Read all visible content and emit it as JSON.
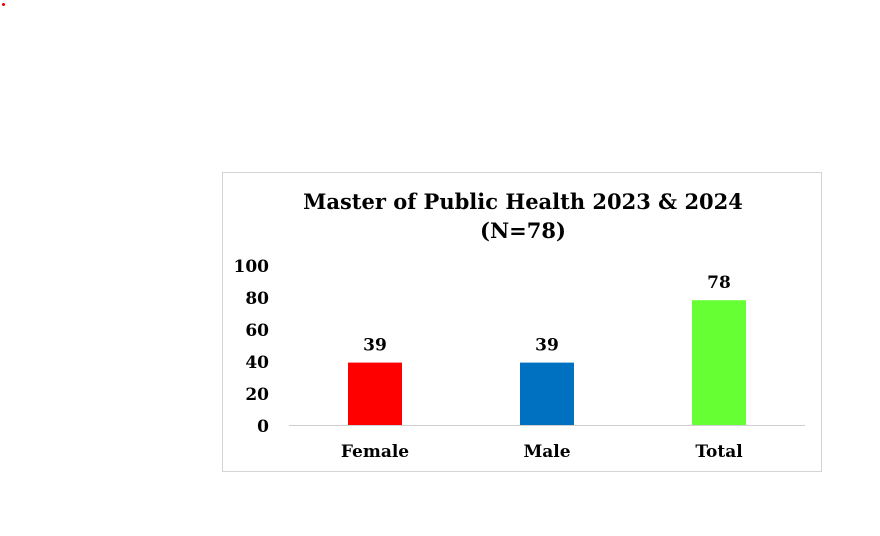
{
  "chart_data": {
    "type": "bar",
    "title": "Master of Public Health 2023 & 2024",
    "subtitle": "(N=78)",
    "categories": [
      "Female",
      "Male",
      "Total"
    ],
    "values": [
      39,
      39,
      78
    ],
    "data_labels": [
      "39",
      "39",
      "78"
    ],
    "colors": [
      "#ff0000",
      "#0070c0",
      "#66ff33"
    ],
    "yticks": [
      0,
      20,
      40,
      60,
      80,
      100
    ],
    "ylim": [
      0,
      100
    ],
    "xlabel": "",
    "ylabel": "",
    "grid": false,
    "legend": "none"
  }
}
